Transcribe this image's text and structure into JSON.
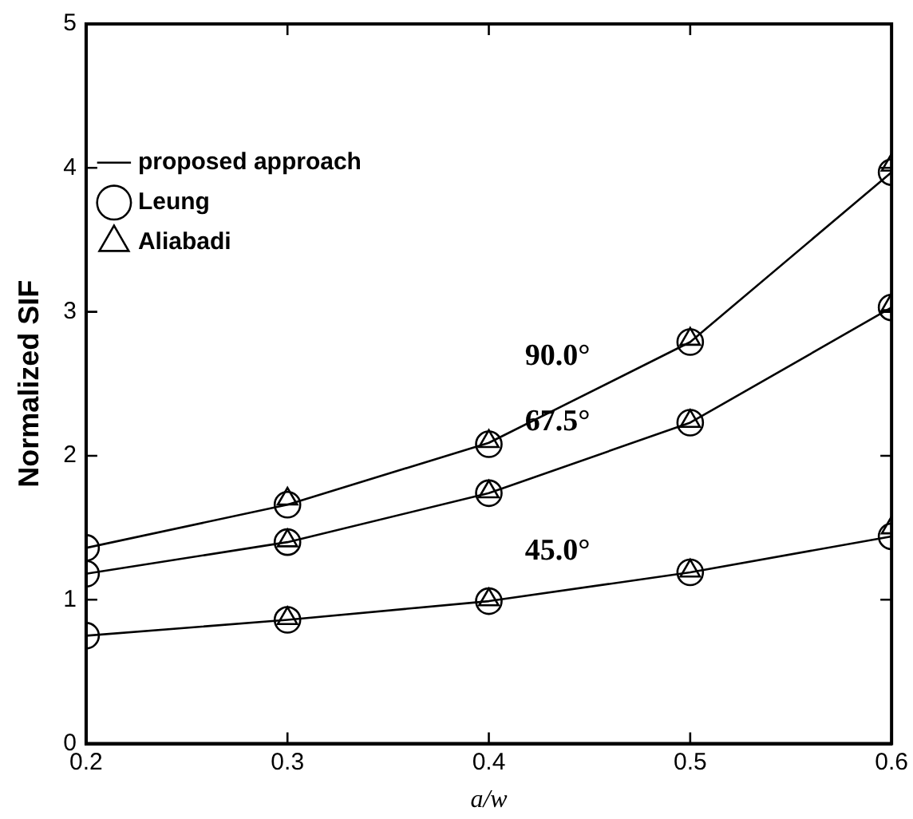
{
  "chart_data": {
    "type": "line",
    "xlabel": "a/w",
    "ylabel": "Normalized SIF",
    "x": [
      0.2,
      0.3,
      0.4,
      0.5,
      0.6
    ],
    "xlim": [
      0.2,
      0.6
    ],
    "xticks": [
      0.2,
      0.3,
      0.4,
      0.5,
      0.6
    ],
    "ylim": [
      0,
      5
    ],
    "yticks": [
      0,
      1,
      2,
      3,
      4,
      5
    ],
    "grid": false,
    "legend": "top left",
    "series": [
      {
        "name": "proposed approach",
        "color": "#000000",
        "marker": "none",
        "values": [
          1.36,
          1.66,
          2.09,
          2.79,
          3.97
        ]
      },
      {
        "color": "#000000",
        "marker": "none",
        "values": [
          1.18,
          1.4,
          1.74,
          2.23,
          3.03
        ]
      },
      {
        "color": "#000000",
        "marker": "none",
        "values": [
          0.75,
          0.86,
          0.99,
          1.19,
          1.44
        ]
      },
      {
        "name": "Leung",
        "type": "scatter",
        "color": "#000000",
        "marker": "circle",
        "x": [
          0.2,
          0.3,
          0.4,
          0.5,
          0.6,
          0.2,
          0.3,
          0.4,
          0.5,
          0.6,
          0.2,
          0.3,
          0.4,
          0.5,
          0.6
        ],
        "values": [
          1.36,
          1.66,
          2.08,
          2.79,
          3.97,
          1.18,
          1.4,
          1.74,
          2.23,
          3.03,
          0.75,
          0.86,
          0.99,
          1.19,
          1.44
        ]
      },
      {
        "name": "Aliabadi",
        "type": "scatter",
        "color": "#000000",
        "marker": "triangle",
        "x": [
          0.3,
          0.4,
          0.5,
          0.6,
          0.3,
          0.4,
          0.5,
          0.6,
          0.3,
          0.4,
          0.5,
          0.6
        ],
        "values": [
          1.7,
          2.1,
          2.81,
          4.02,
          1.41,
          1.75,
          2.24,
          3.05,
          0.87,
          1.0,
          1.2,
          1.5
        ]
      }
    ],
    "annotations": [
      "90.0°",
      "67.5°",
      "45.0°"
    ]
  }
}
